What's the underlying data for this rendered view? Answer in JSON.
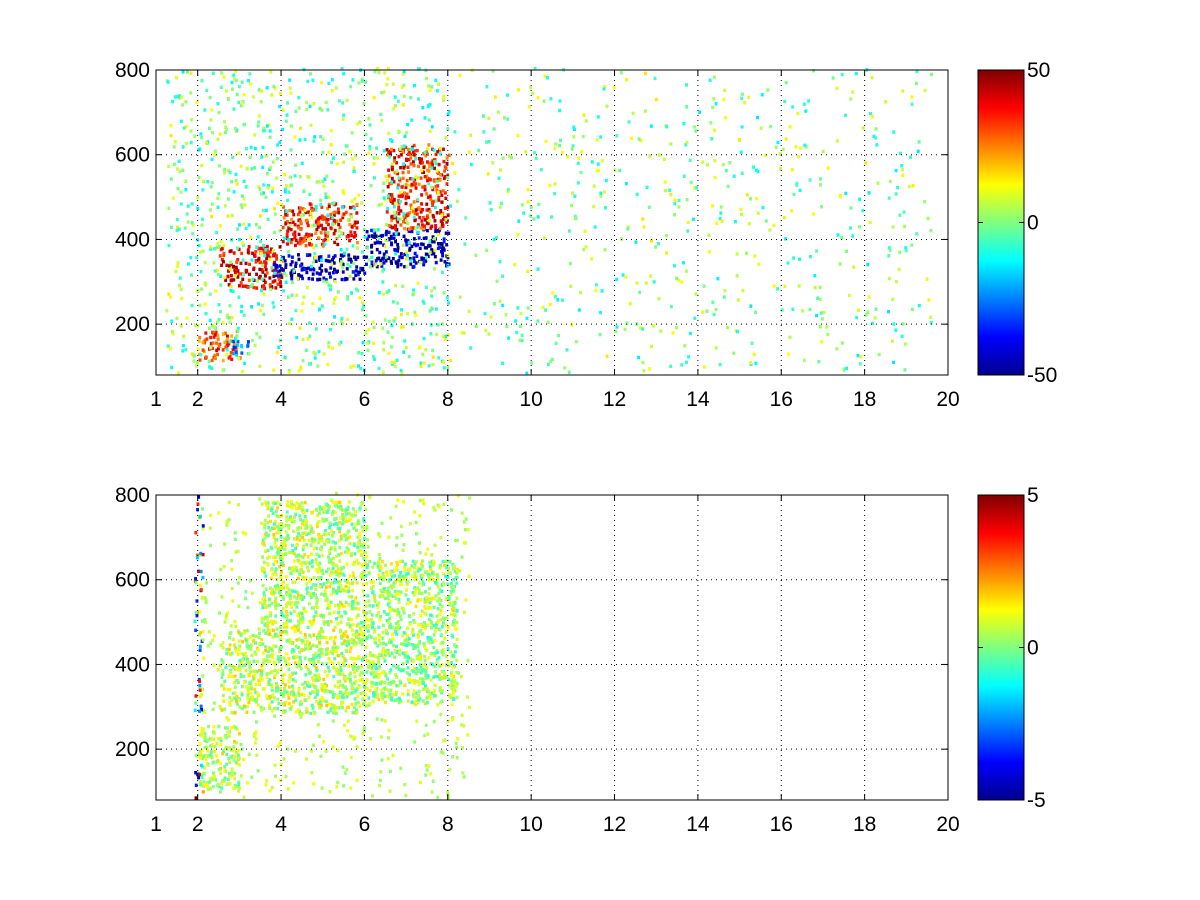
{
  "chart_data": [
    {
      "type": "heatmap",
      "title": "",
      "xlabel": "",
      "ylabel": "",
      "xlim": [
        1,
        20
      ],
      "ylim": [
        80,
        800
      ],
      "xticks": [
        1,
        2,
        4,
        6,
        8,
        10,
        12,
        14,
        16,
        18,
        20
      ],
      "yticks": [
        200,
        400,
        600,
        800
      ],
      "grid": true,
      "colormap": "jet",
      "clim": [
        -50,
        50
      ],
      "colorbar_ticks": [
        50,
        0,
        -50
      ],
      "colorbar_position": "right",
      "features": [
        {
          "x": [
            2.0,
            3.0
          ],
          "y": [
            110,
            180
          ],
          "value": 30
        },
        {
          "x": [
            2.5,
            4.0
          ],
          "y": [
            280,
            380
          ],
          "value": 40
        },
        {
          "x": [
            3.8,
            6.0
          ],
          "y": [
            300,
            360
          ],
          "value": -45
        },
        {
          "x": [
            4.0,
            5.8
          ],
          "y": [
            380,
            480
          ],
          "value": 35
        },
        {
          "x": [
            6.0,
            8.0
          ],
          "y": [
            330,
            420
          ],
          "value": -45
        },
        {
          "x": [
            6.5,
            8.0
          ],
          "y": [
            420,
            620
          ],
          "value": 35
        },
        {
          "x": [
            2.8,
            3.2
          ],
          "y": [
            120,
            160
          ],
          "value": -25
        }
      ]
    },
    {
      "type": "heatmap",
      "title": "",
      "xlabel": "",
      "ylabel": "",
      "xlim": [
        1,
        20
      ],
      "ylim": [
        80,
        800
      ],
      "xticks": [
        1,
        2,
        4,
        6,
        8,
        10,
        12,
        14,
        16,
        18,
        20
      ],
      "yticks": [
        200,
        400,
        600,
        800
      ],
      "grid": true,
      "colormap": "jet",
      "clim": [
        -5,
        5
      ],
      "colorbar_ticks": [
        5,
        0,
        -5
      ],
      "colorbar_position": "right",
      "features": [
        {
          "x": [
            2.0,
            3.0
          ],
          "y": [
            100,
            250
          ],
          "value": 0.5
        },
        {
          "x": [
            2.5,
            6.0
          ],
          "y": [
            280,
            480
          ],
          "value": 0.6
        },
        {
          "x": [
            6.0,
            8.2
          ],
          "y": [
            300,
            640
          ],
          "value": 0.3
        },
        {
          "x": [
            3.5,
            6.0
          ],
          "y": [
            480,
            780
          ],
          "value": 0.5
        }
      ]
    }
  ]
}
